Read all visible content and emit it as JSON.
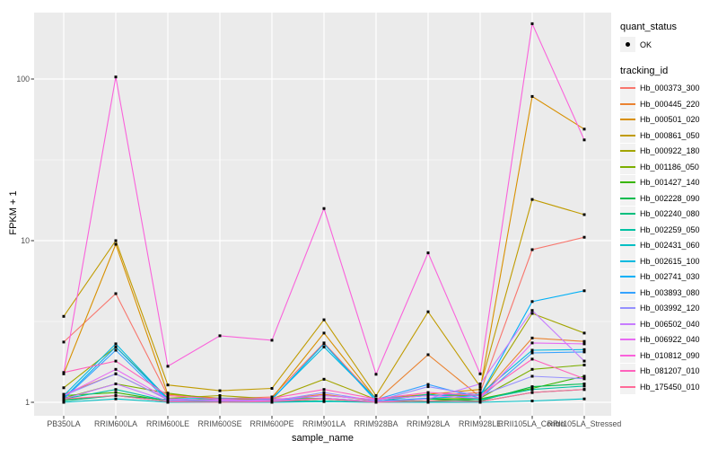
{
  "colors": {
    "panel_bg": "#EBEBEB",
    "grid": "#FFFFFF",
    "point": "#000000",
    "axis_text": "#4D4D4D",
    "key_bg": "#F2F2F2"
  },
  "legend": {
    "quant_status_title": "quant_status",
    "ok_label": "OK",
    "ok_symbol": "point",
    "tracking_id_title": "tracking_id"
  },
  "chart_data": {
    "type": "line",
    "title": "",
    "xlabel": "sample_name",
    "ylabel": "FPKM + 1",
    "y_scale": "log10",
    "ylim": [
      0.82,
      258
    ],
    "y_ticks": [
      1,
      10,
      100
    ],
    "y_tick_labels": [
      "1",
      "10",
      "100"
    ],
    "y_minor_gridlines": [
      3.1623,
      31.623
    ],
    "grid": "on",
    "legend_position": "right",
    "point_shape": "small-black-square",
    "categories": [
      "PB350LA",
      "RRIM600LA",
      "RRIM600LE",
      "RRIM600SE",
      "RRIM600PE",
      "RRIM901LA",
      "RRIM928BA",
      "RRIM928LA",
      "RRIM928LE",
      "RRII105LA_Control",
      "RRII105LA_Stressed"
    ],
    "series": [
      {
        "name": "Hb_000373_300",
        "color": "#F8766D",
        "values": [
          2.36,
          4.7,
          1.1,
          1.05,
          1.08,
          2.33,
          1.05,
          1.1,
          1.15,
          8.8,
          10.5
        ]
      },
      {
        "name": "Hb_000445_220",
        "color": "#EA8331",
        "values": [
          1.12,
          1.5,
          1.04,
          1.02,
          1.03,
          1.12,
          1.02,
          1.97,
          1.08,
          2.5,
          2.38
        ]
      },
      {
        "name": "Hb_000501_020",
        "color": "#D89000",
        "values": [
          1.5,
          9.5,
          1.12,
          1.06,
          1.06,
          2.68,
          1.05,
          1.12,
          1.2,
          78,
          49
        ]
      },
      {
        "name": "Hb_000861_050",
        "color": "#C09B00",
        "values": [
          3.4,
          10,
          1.28,
          1.18,
          1.22,
          3.24,
          1.1,
          3.63,
          1.25,
          18,
          14.5
        ]
      },
      {
        "name": "Hb_000922_180",
        "color": "#A3A500",
        "values": [
          1.23,
          2.2,
          1.06,
          1.1,
          1.05,
          1.39,
          1.04,
          1.1,
          1.1,
          3.55,
          2.68
        ]
      },
      {
        "name": "Hb_001186_050",
        "color": "#7CAE00",
        "values": [
          1.06,
          1.3,
          1.14,
          1.04,
          1.05,
          1.06,
          1.01,
          1.05,
          1.06,
          1.6,
          1.7
        ]
      },
      {
        "name": "Hb_001427_140",
        "color": "#39B600",
        "values": [
          1.1,
          1.15,
          1.02,
          1.05,
          1.01,
          1.05,
          1.01,
          1.02,
          1.05,
          1.22,
          1.45
        ]
      },
      {
        "name": "Hb_002228_090",
        "color": "#00BB4E",
        "values": [
          1.04,
          1.1,
          1.04,
          1.01,
          1.02,
          1.05,
          1.0,
          1.05,
          1.02,
          1.25,
          1.3
        ]
      },
      {
        "name": "Hb_002240_080",
        "color": "#00BF7D",
        "values": [
          1.02,
          1.1,
          1.01,
          1.0,
          1.01,
          1.02,
          1.0,
          1.01,
          1.01,
          1.15,
          1.2
        ]
      },
      {
        "name": "Hb_002259_050",
        "color": "#00C1A3",
        "values": [
          1.05,
          1.2,
          1.02,
          1.01,
          1.0,
          1.06,
          1.01,
          1.12,
          1.04,
          1.2,
          1.26
        ]
      },
      {
        "name": "Hb_002431_060",
        "color": "#00BFC4",
        "values": [
          1.0,
          1.05,
          1.0,
          1.0,
          1.0,
          1.01,
          1.0,
          1.0,
          1.0,
          1.02,
          1.05
        ]
      },
      {
        "name": "Hb_002615_100",
        "color": "#00BAE0",
        "values": [
          1.1,
          2.3,
          1.05,
          1.06,
          1.05,
          2.2,
          1.05,
          1.1,
          1.12,
          2.1,
          2.12
        ]
      },
      {
        "name": "Hb_002741_030",
        "color": "#00B0F6",
        "values": [
          1.06,
          2.2,
          1.04,
          1.02,
          1.04,
          2.3,
          1.02,
          1.06,
          1.1,
          4.2,
          4.9
        ]
      },
      {
        "name": "Hb_003893_080",
        "color": "#35A2FF",
        "values": [
          1.05,
          2.1,
          1.02,
          1.04,
          1.02,
          1.1,
          1.04,
          1.29,
          1.06,
          2.02,
          2.05
        ]
      },
      {
        "name": "Hb_003992_120",
        "color": "#9590FF",
        "values": [
          1.1,
          1.5,
          1.04,
          1.02,
          1.02,
          1.15,
          1.02,
          1.25,
          1.1,
          1.45,
          1.4
        ]
      },
      {
        "name": "Hb_006502_040",
        "color": "#C77CFF",
        "values": [
          1.05,
          1.3,
          1.02,
          1.04,
          1.02,
          1.06,
          1.01,
          1.05,
          1.3,
          3.7,
          1.8
        ]
      },
      {
        "name": "Hb_006922_040",
        "color": "#E76BF3",
        "values": [
          1.1,
          1.6,
          1.05,
          1.02,
          1.04,
          1.1,
          1.04,
          1.1,
          1.06,
          2.33,
          2.3
        ]
      },
      {
        "name": "Hb_010812_090",
        "color": "#FA62DB",
        "values": [
          1.52,
          103,
          1.67,
          2.58,
          2.42,
          15.8,
          1.49,
          8.4,
          1.5,
          220,
          42
        ]
      },
      {
        "name": "Hb_081207_010",
        "color": "#FF62BC",
        "values": [
          1.53,
          1.8,
          1.1,
          1.05,
          1.06,
          1.2,
          1.05,
          1.15,
          1.1,
          1.85,
          1.4
        ]
      },
      {
        "name": "Hb_175450_010",
        "color": "#FF6A98",
        "values": [
          1.05,
          1.1,
          1.01,
          1.0,
          1.01,
          1.05,
          1.0,
          1.02,
          1.01,
          1.15,
          1.2
        ]
      }
    ]
  }
}
